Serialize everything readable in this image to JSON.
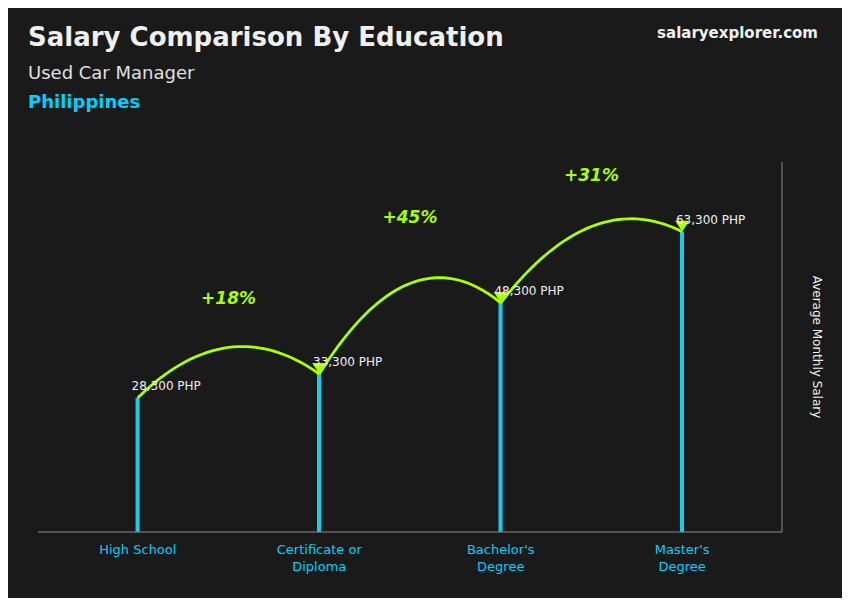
{
  "chart_data": {
    "type": "bar",
    "title": "Salary Comparison By Education",
    "subtitle": "Used Car Manager",
    "categories": [
      "High School",
      "Certificate or\nDiploma",
      "Bachelor's\nDegree",
      "Master's\nDegree"
    ],
    "values": [
      28300,
      33300,
      48300,
      63300
    ],
    "value_labels": [
      "28,300 PHP",
      "33,300 PHP",
      "48,300 PHP",
      "63,300 PHP"
    ],
    "data_labels": true,
    "color": "#1ec8e8",
    "ylabel": "Average Monthly Salary",
    "ylim": [
      0,
      78000
    ],
    "tick_labels": "x",
    "grid": false,
    "annotations": [
      {
        "text": "Philippines"
      },
      {
        "text": "salaryexplorer.com"
      },
      {
        "text": "+18%",
        "from": "High School",
        "to": "Certificate or\nDiploma",
        "peak": 47000,
        "color": "#aaff00"
      },
      {
        "text": "+45%",
        "from": "Certificate or\nDiploma",
        "to": "Bachelor's\nDegree",
        "peak": 64000,
        "color": "#aaff00"
      },
      {
        "text": "+31%",
        "from": "Bachelor's\nDegree",
        "to": "Master's\nDegree",
        "peak": 73000,
        "color": "#aaff00"
      }
    ]
  }
}
